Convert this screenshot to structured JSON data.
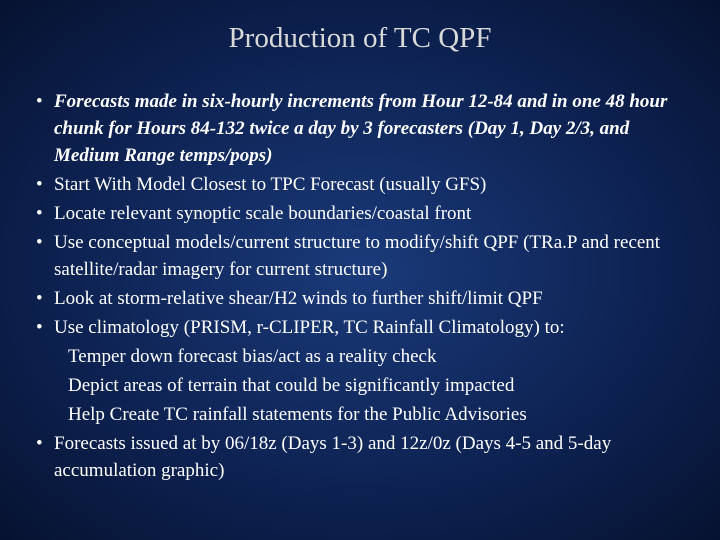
{
  "slide": {
    "title": "Production of TC QPF",
    "title_color": "#d9d9d9",
    "title_fontsize": 29,
    "body_color": "#ffffff",
    "body_fontsize": 19,
    "background_center_color": "#1a3a7a",
    "background_mid_color": "#0d2150",
    "background_edge_color": "#061230",
    "bullets": [
      {
        "marker": "•",
        "text": "Forecasts made in six-hourly increments from Hour 12-84 and in one 48 hour chunk for Hours 84-132 twice a day by 3 forecasters (Day 1, Day 2/3, and Medium Range temps/pops)",
        "italic_bold": true
      },
      {
        "marker": "•",
        "text": "Start With Model Closest to TPC Forecast (usually GFS)",
        "italic_bold": false
      },
      {
        "marker": "•",
        "text": "Locate relevant synoptic scale boundaries/coastal front",
        "italic_bold": false
      },
      {
        "marker": "•",
        "text": "Use conceptual models/current structure to modify/shift QPF (TRa.P and recent satellite/radar imagery for current structure)",
        "italic_bold": false
      },
      {
        "marker": "•",
        "text": "Look at storm-relative shear/H2 winds to further shift/limit QPF",
        "italic_bold": false
      },
      {
        "marker": "•",
        "text": "Use climatology (PRISM, r-CLIPER, TC Rainfall Climatology) to:",
        "italic_bold": false,
        "sublines": [
          "Temper down forecast bias/act as a reality check",
          "Depict areas of terrain that could be significantly impacted",
          "Help Create TC rainfall statements for the Public Advisories"
        ]
      },
      {
        "marker": "•",
        "text": "Forecasts issued at by 06/18z (Days 1-3) and 12z/0z (Days 4-5 and 5-day accumulation graphic)",
        "italic_bold": false
      }
    ]
  }
}
